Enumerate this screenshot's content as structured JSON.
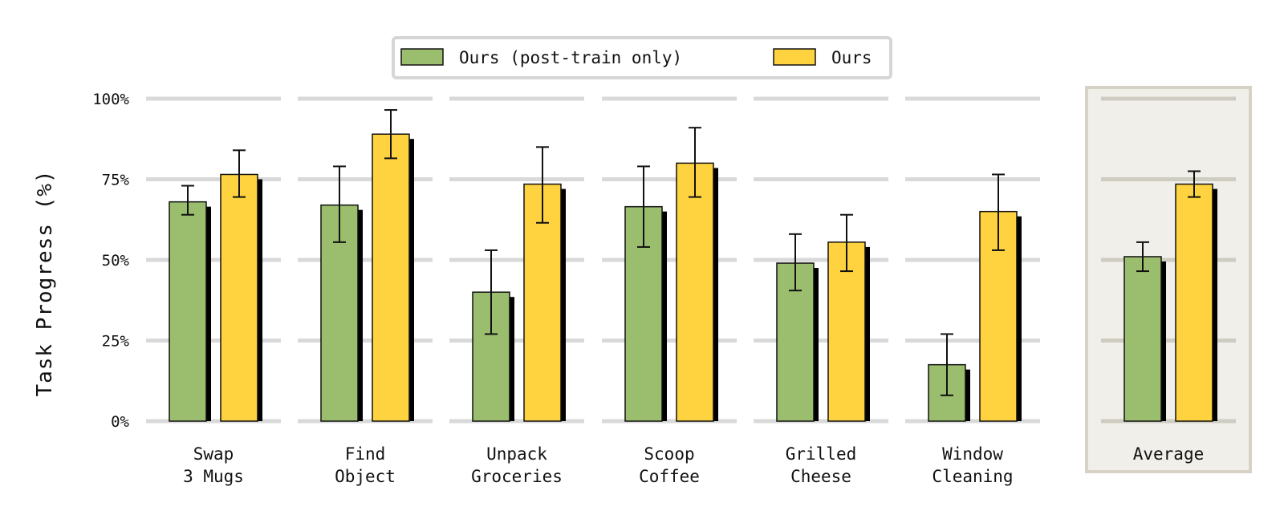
{
  "chart_data": {
    "type": "bar",
    "ylabel": "Task Progress (%)",
    "ylim": [
      0,
      100
    ],
    "yticks": [
      0,
      25,
      50,
      75,
      100
    ],
    "ytick_labels": [
      "0%",
      "25%",
      "50%",
      "75%",
      "100%"
    ],
    "grid": true,
    "legend_position": "top-center",
    "categories": [
      [
        "Swap",
        "3 Mugs"
      ],
      [
        "Find",
        "Object"
      ],
      [
        "Unpack",
        "Groceries"
      ],
      [
        "Scoop",
        "Coffee"
      ],
      [
        "Grilled",
        "Cheese"
      ],
      [
        "Window",
        "Cleaning"
      ],
      [
        "Average"
      ]
    ],
    "highlighted_category_index": 6,
    "series": [
      {
        "name": "Ours (post-train only)",
        "color": "#9bbd6e",
        "values": [
          68,
          67,
          40,
          66.5,
          49,
          17.5,
          51
        ],
        "error": [
          [
            64,
            73
          ],
          [
            55.5,
            79
          ],
          [
            27,
            53
          ],
          [
            54,
            79
          ],
          [
            40.5,
            58
          ],
          [
            8,
            27
          ],
          [
            46.5,
            55.5
          ]
        ]
      },
      {
        "name": "Ours",
        "color": "#ffd23f",
        "values": [
          76.5,
          89,
          73.5,
          80,
          55.5,
          65,
          73.5
        ],
        "error": [
          [
            69.5,
            84
          ],
          [
            81.5,
            96.5
          ],
          [
            61.5,
            85
          ],
          [
            69.5,
            91
          ],
          [
            46.5,
            64
          ],
          [
            53,
            76.5
          ],
          [
            69.5,
            77.5
          ]
        ]
      }
    ]
  }
}
